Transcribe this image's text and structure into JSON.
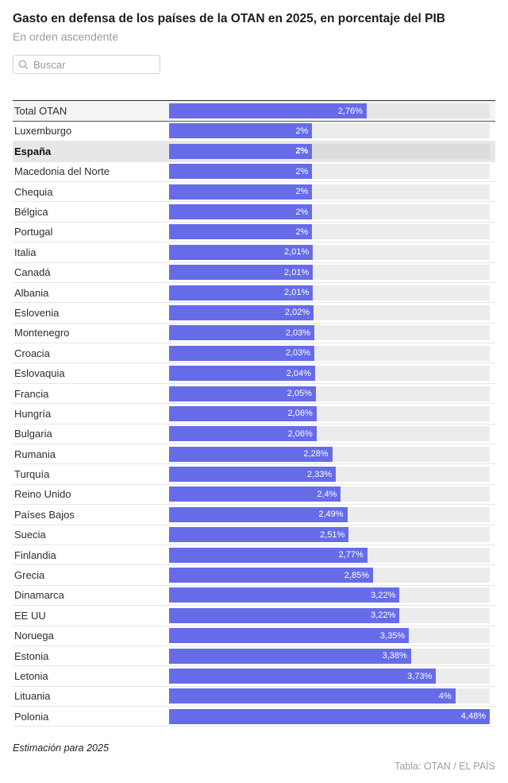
{
  "header": {
    "title": "Gasto en defensa de los países de la OTAN en 2025, en porcentaje del PIB",
    "subtitle": "En orden ascendente"
  },
  "search": {
    "placeholder": "Buscar",
    "icon": "search-icon"
  },
  "colors": {
    "bar": "#666CE8",
    "track": "#ECECEC",
    "track_highlight": "#DCDCDC",
    "highlight_row_bg": "#E7E7E7",
    "total_row_bg": "#F4F4F4",
    "value_text": "#FFFFFF"
  },
  "chart_data": {
    "type": "bar",
    "orientation": "horizontal",
    "title": "Gasto en defensa de los países de la OTAN en 2025, en porcentaje del PIB",
    "subtitle": "En orden ascendente",
    "xlabel": "",
    "ylabel": "",
    "unit": "% del PIB",
    "xlim": [
      0,
      4.48
    ],
    "grid": false,
    "legend": false,
    "rows": [
      {
        "label": "Total OTAN",
        "value": 2.76,
        "display": "2,76%",
        "total": true
      },
      {
        "label": "Luxemburgo",
        "value": 2.0,
        "display": "2%"
      },
      {
        "label": "España",
        "value": 2.0,
        "display": "2%",
        "highlight": true
      },
      {
        "label": "Macedonia del Norte",
        "value": 2.0,
        "display": "2%"
      },
      {
        "label": "Chequia",
        "value": 2.0,
        "display": "2%"
      },
      {
        "label": "Bélgica",
        "value": 2.0,
        "display": "2%"
      },
      {
        "label": "Portugal",
        "value": 2.0,
        "display": "2%"
      },
      {
        "label": "Italia",
        "value": 2.01,
        "display": "2,01%"
      },
      {
        "label": "Canadá",
        "value": 2.01,
        "display": "2,01%"
      },
      {
        "label": "Albania",
        "value": 2.01,
        "display": "2,01%"
      },
      {
        "label": "Eslovenia",
        "value": 2.02,
        "display": "2,02%"
      },
      {
        "label": "Montenegro",
        "value": 2.03,
        "display": "2,03%"
      },
      {
        "label": "Croacia",
        "value": 2.03,
        "display": "2,03%"
      },
      {
        "label": "Eslovaquia",
        "value": 2.04,
        "display": "2,04%"
      },
      {
        "label": "Francia",
        "value": 2.05,
        "display": "2,05%"
      },
      {
        "label": "Hungría",
        "value": 2.06,
        "display": "2,06%"
      },
      {
        "label": "Bulgaria",
        "value": 2.06,
        "display": "2,06%"
      },
      {
        "label": "Rumania",
        "value": 2.28,
        "display": "2,28%"
      },
      {
        "label": "Turquía",
        "value": 2.33,
        "display": "2,33%"
      },
      {
        "label": "Reino Unido",
        "value": 2.4,
        "display": "2,4%"
      },
      {
        "label": "Países Bajos",
        "value": 2.49,
        "display": "2,49%"
      },
      {
        "label": "Suecia",
        "value": 2.51,
        "display": "2,51%"
      },
      {
        "label": "Finlandia",
        "value": 2.77,
        "display": "2,77%"
      },
      {
        "label": "Grecia",
        "value": 2.85,
        "display": "2,85%"
      },
      {
        "label": "Dinamarca",
        "value": 3.22,
        "display": "3,22%"
      },
      {
        "label": "EE UU",
        "value": 3.22,
        "display": "3,22%"
      },
      {
        "label": "Noruega",
        "value": 3.35,
        "display": "3,35%"
      },
      {
        "label": "Estonia",
        "value": 3.38,
        "display": "3,38%"
      },
      {
        "label": "Letonia",
        "value": 3.73,
        "display": "3,73%"
      },
      {
        "label": "Lituania",
        "value": 4.0,
        "display": "4%"
      },
      {
        "label": "Polonia",
        "value": 4.48,
        "display": "4,48%"
      }
    ]
  },
  "footer": {
    "note": "Estimación para 2025",
    "credit": "Tabla: OTAN / EL PAÍS"
  }
}
